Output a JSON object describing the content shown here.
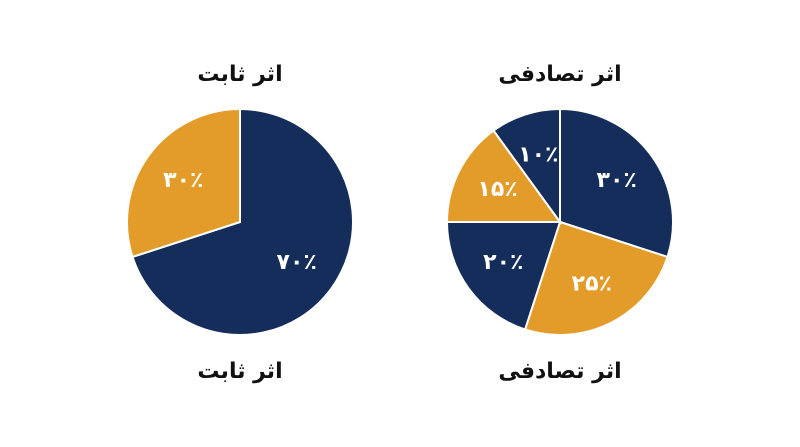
{
  "chart_data": [
    {
      "type": "pie",
      "title": "اثر ثابت",
      "annotation": "اثر ثابت",
      "categories": [
        null,
        null
      ],
      "values": [
        70,
        30
      ],
      "value_labels": [
        "۷۰٪",
        "۳۰٪"
      ],
      "colors": [
        "#142d5a",
        "#e39b2a"
      ]
    },
    {
      "type": "pie",
      "title": "اثر تصادفی",
      "annotation": "اثر تصادفی",
      "categories": [
        null,
        null,
        null,
        null,
        null
      ],
      "values": [
        30,
        25,
        20,
        15,
        10
      ],
      "value_labels": [
        "۳۰٪",
        "۲۵٪",
        "۲۰٪",
        "۱۵٪",
        "۱۰٪"
      ],
      "colors": [
        "#142d5a",
        "#e39b2a",
        "#142d5a",
        "#e39b2a",
        "#142d5a"
      ]
    }
  ]
}
